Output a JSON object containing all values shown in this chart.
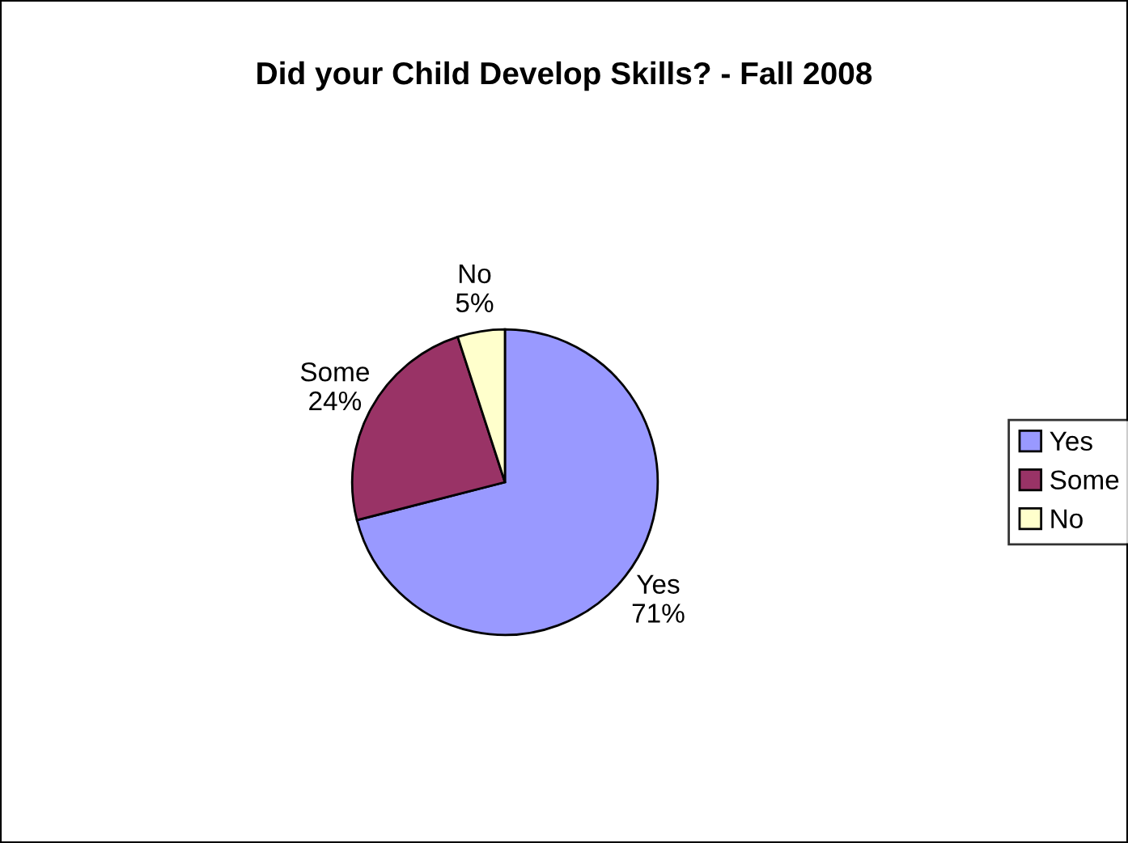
{
  "chart_data": {
    "type": "pie",
    "title": "Did your Child Develop Skills? - Fall 2008",
    "categories": [
      "Yes",
      "Some",
      "No"
    ],
    "values": [
      71,
      24,
      5
    ],
    "value_labels": [
      "71%",
      "24%",
      "5%"
    ],
    "colors": [
      "#9999ff",
      "#993366",
      "#ffffcc"
    ],
    "legend": "right"
  }
}
